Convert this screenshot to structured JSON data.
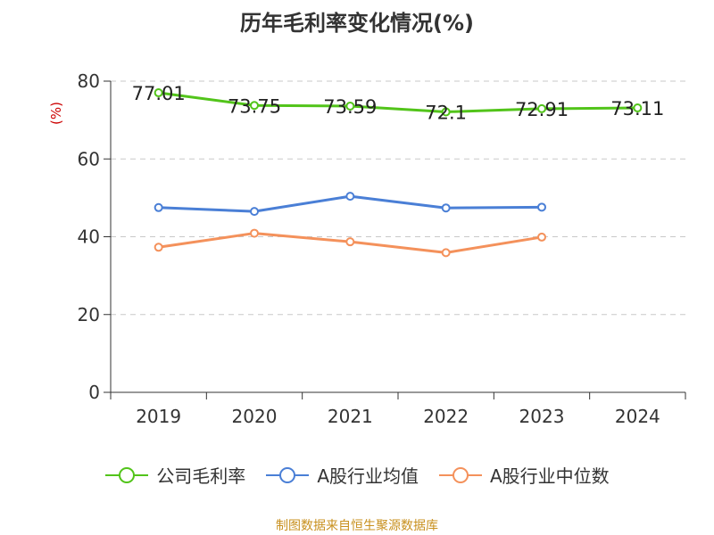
{
  "chart_data": {
    "type": "line",
    "title": "历年毛利率变化情况(%)",
    "ylabel": "(%)",
    "xlabel": "",
    "categories": [
      "2019",
      "2020",
      "2021",
      "2022",
      "2023",
      "2024"
    ],
    "ylim": [
      0,
      80
    ],
    "yticks": [
      0,
      20,
      40,
      60,
      80
    ],
    "grid": true,
    "legend_position": "bottom",
    "series": [
      {
        "name": "公司毛利率",
        "color": "#52c41a",
        "values": [
          77.01,
          73.75,
          73.59,
          72.1,
          72.91,
          73.11
        ],
        "labels": [
          "77.01",
          "73.75",
          "73.59",
          "72.1",
          "72.91",
          "73.11"
        ]
      },
      {
        "name": "A股行业均值",
        "color": "#4a7fd6",
        "values": [
          47.5,
          46.5,
          50.4,
          47.4,
          47.6,
          null
        ]
      },
      {
        "name": "A股行业中位数",
        "color": "#f4915b",
        "values": [
          37.3,
          40.9,
          38.7,
          35.9,
          39.9,
          null
        ]
      }
    ]
  },
  "source": "制图数据来自恒生聚源数据库"
}
